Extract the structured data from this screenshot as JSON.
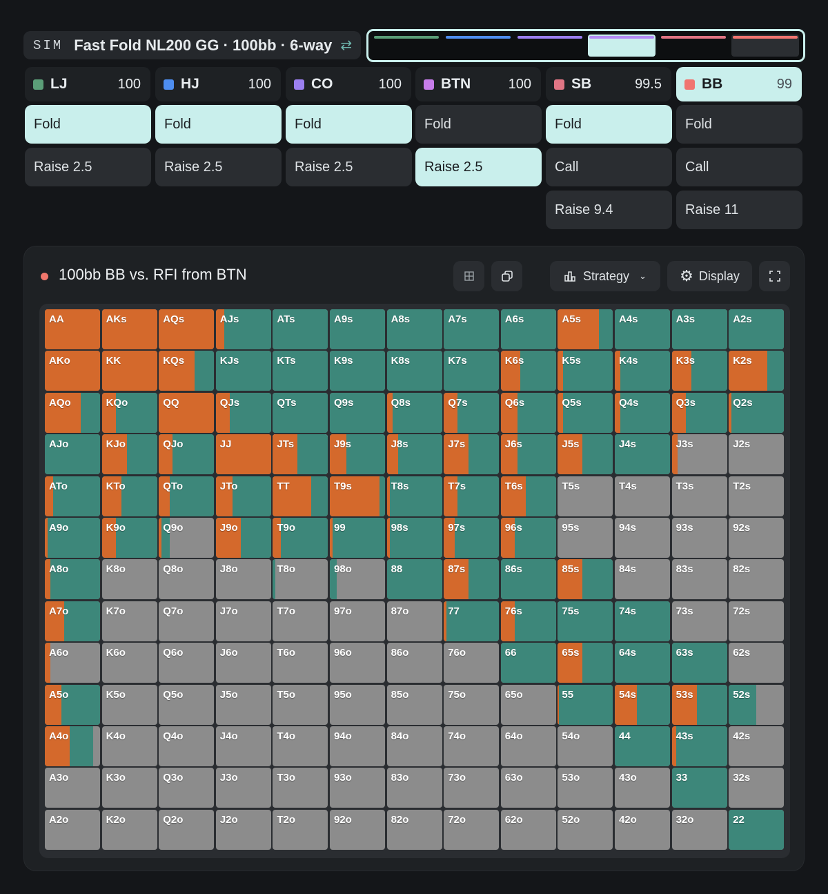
{
  "header": {
    "tag": "SIM",
    "title": "Fast Fold NL200 GG · 100bb · 6-way",
    "swap_icon": "swap-arrows-icon"
  },
  "timeline": [
    {
      "color": "#5b9e78",
      "state": "normal"
    },
    {
      "color": "#4e8ef0",
      "state": "normal"
    },
    {
      "color": "#9b7ff0",
      "state": "normal"
    },
    {
      "color": "#b58df5",
      "state": "active"
    },
    {
      "color": "#e07584",
      "state": "normal"
    },
    {
      "color": "#f07570",
      "state": "last"
    }
  ],
  "positions": [
    {
      "name": "LJ",
      "stack": "100",
      "color": "#5b9e78",
      "active": false,
      "actions": [
        "Fold",
        "Raise 2.5"
      ],
      "selected": 0
    },
    {
      "name": "HJ",
      "stack": "100",
      "color": "#4e8ef0",
      "active": false,
      "actions": [
        "Fold",
        "Raise 2.5"
      ],
      "selected": 0
    },
    {
      "name": "CO",
      "stack": "100",
      "color": "#9b7ff0",
      "active": false,
      "actions": [
        "Fold",
        "Raise 2.5"
      ],
      "selected": 0
    },
    {
      "name": "BTN",
      "stack": "100",
      "color": "#c77dea",
      "active": false,
      "actions": [
        "Fold",
        "Raise 2.5"
      ],
      "selected": 1
    },
    {
      "name": "SB",
      "stack": "99.5",
      "color": "#e07584",
      "active": false,
      "actions": [
        "Fold",
        "Call",
        "Raise 9.4"
      ],
      "selected": 0
    },
    {
      "name": "BB",
      "stack": "99",
      "color": "#f07570",
      "active": true,
      "actions": [
        "Fold",
        "Call",
        "Raise 11"
      ],
      "selected": -1
    }
  ],
  "panel": {
    "title": "100bb BB vs. RFI from BTN",
    "strategy_label": "Strategy",
    "display_label": "Display"
  },
  "colors": {
    "raise": "#d4692c",
    "call": "#3d877a",
    "fold": "#8c8c8c"
  },
  "grid": {
    "highlighted": "JTs",
    "cells": [
      [
        "AA",
        1,
        0
      ],
      [
        "AKs",
        1,
        0
      ],
      [
        "AQs",
        1,
        0
      ],
      [
        "AJs",
        0.15,
        0.85
      ],
      [
        "ATs",
        0,
        1
      ],
      [
        "A9s",
        0,
        1
      ],
      [
        "A8s",
        0,
        1
      ],
      [
        "A7s",
        0,
        1
      ],
      [
        "A6s",
        0,
        1
      ],
      [
        "A5s",
        0.75,
        0.25
      ],
      [
        "A4s",
        0,
        1
      ],
      [
        "A3s",
        0,
        1
      ],
      [
        "A2s",
        0,
        1
      ],
      [
        "AKo",
        1,
        0
      ],
      [
        "KK",
        1,
        0
      ],
      [
        "KQs",
        0.65,
        0.35
      ],
      [
        "KJs",
        0,
        1
      ],
      [
        "KTs",
        0,
        1
      ],
      [
        "K9s",
        0,
        1
      ],
      [
        "K8s",
        0,
        1
      ],
      [
        "K7s",
        0,
        1
      ],
      [
        "K6s",
        0.35,
        0.65
      ],
      [
        "K5s",
        0.1,
        0.9
      ],
      [
        "K4s",
        0.1,
        0.9
      ],
      [
        "K3s",
        0.35,
        0.65
      ],
      [
        "K2s",
        0.7,
        0.3
      ],
      [
        "AQo",
        0.65,
        0.35
      ],
      [
        "KQo",
        0.25,
        0.75
      ],
      [
        "QQ",
        1,
        0
      ],
      [
        "QJs",
        0.25,
        0.75
      ],
      [
        "QTs",
        0,
        1
      ],
      [
        "Q9s",
        0,
        1
      ],
      [
        "Q8s",
        0.1,
        0.9
      ],
      [
        "Q7s",
        0.25,
        0.75
      ],
      [
        "Q6s",
        0.3,
        0.7
      ],
      [
        "Q5s",
        0.1,
        0.9
      ],
      [
        "Q4s",
        0.1,
        0.9
      ],
      [
        "Q3s",
        0.25,
        0.75
      ],
      [
        "Q2s",
        0.05,
        0.95
      ],
      [
        "AJo",
        0,
        1
      ],
      [
        "KJo",
        0.45,
        0.55
      ],
      [
        "QJo",
        0.25,
        0.75
      ],
      [
        "JJ",
        1,
        0
      ],
      [
        "JTs",
        0.45,
        0.55
      ],
      [
        "J9s",
        0.3,
        0.7
      ],
      [
        "J8s",
        0.2,
        0.8
      ],
      [
        "J7s",
        0.45,
        0.55
      ],
      [
        "J6s",
        0.3,
        0.7
      ],
      [
        "J5s",
        0.45,
        0.55
      ],
      [
        "J4s",
        0,
        1
      ],
      [
        "J3s",
        0.1,
        0
      ],
      [
        "J2s",
        0,
        0
      ],
      [
        "ATo",
        0.15,
        0.85
      ],
      [
        "KTo",
        0.35,
        0.65
      ],
      [
        "QTo",
        0.2,
        0.8
      ],
      [
        "JTo",
        0.3,
        0.7
      ],
      [
        "TT",
        0.7,
        0.3
      ],
      [
        "T9s",
        0.9,
        0.1
      ],
      [
        "T8s",
        0.05,
        0.95
      ],
      [
        "T7s",
        0.25,
        0.75
      ],
      [
        "T6s",
        0.45,
        0.55
      ],
      [
        "T5s",
        0,
        0
      ],
      [
        "T4s",
        0,
        0
      ],
      [
        "T3s",
        0,
        0
      ],
      [
        "T2s",
        0,
        0
      ],
      [
        "A9o",
        0.05,
        0.95
      ],
      [
        "K9o",
        0.25,
        0.75
      ],
      [
        "Q9o",
        0.05,
        0.15
      ],
      [
        "J9o",
        0.45,
        0.55
      ],
      [
        "T9o",
        0.15,
        0.85
      ],
      [
        "99",
        0.05,
        0.95
      ],
      [
        "98s",
        0.05,
        0.95
      ],
      [
        "97s",
        0.2,
        0.8
      ],
      [
        "96s",
        0.25,
        0.75
      ],
      [
        "95s",
        0,
        0
      ],
      [
        "94s",
        0,
        0
      ],
      [
        "93s",
        0,
        0
      ],
      [
        "92s",
        0,
        0
      ],
      [
        "A8o",
        0.1,
        0.9
      ],
      [
        "K8o",
        0,
        0
      ],
      [
        "Q8o",
        0,
        0
      ],
      [
        "J8o",
        0,
        0
      ],
      [
        "T8o",
        0,
        0.05
      ],
      [
        "98o",
        0,
        0.12
      ],
      [
        "88",
        0,
        1
      ],
      [
        "87s",
        0.45,
        0.55
      ],
      [
        "86s",
        0,
        1
      ],
      [
        "85s",
        0.45,
        0.55
      ],
      [
        "84s",
        0,
        0
      ],
      [
        "83s",
        0,
        0
      ],
      [
        "82s",
        0,
        0
      ],
      [
        "A7o",
        0.35,
        0.65
      ],
      [
        "K7o",
        0,
        0
      ],
      [
        "Q7o",
        0,
        0
      ],
      [
        "J7o",
        0,
        0
      ],
      [
        "T7o",
        0,
        0
      ],
      [
        "97o",
        0,
        0
      ],
      [
        "87o",
        0,
        0
      ],
      [
        "77",
        0.05,
        0.95
      ],
      [
        "76s",
        0.25,
        0.75
      ],
      [
        "75s",
        0,
        1
      ],
      [
        "74s",
        0,
        1
      ],
      [
        "73s",
        0,
        0
      ],
      [
        "72s",
        0,
        0
      ],
      [
        "A6o",
        0.1,
        0
      ],
      [
        "K6o",
        0,
        0
      ],
      [
        "Q6o",
        0,
        0
      ],
      [
        "J6o",
        0,
        0
      ],
      [
        "T6o",
        0,
        0
      ],
      [
        "96o",
        0,
        0
      ],
      [
        "86o",
        0,
        0
      ],
      [
        "76o",
        0,
        0
      ],
      [
        "66",
        0,
        1
      ],
      [
        "65s",
        0.45,
        0.55
      ],
      [
        "64s",
        0,
        1
      ],
      [
        "63s",
        0,
        1
      ],
      [
        "62s",
        0,
        0
      ],
      [
        "A5o",
        0.3,
        0.7
      ],
      [
        "K5o",
        0,
        0
      ],
      [
        "Q5o",
        0,
        0
      ],
      [
        "J5o",
        0,
        0
      ],
      [
        "T5o",
        0,
        0
      ],
      [
        "95o",
        0,
        0
      ],
      [
        "85o",
        0,
        0
      ],
      [
        "75o",
        0,
        0
      ],
      [
        "65o",
        0,
        0
      ],
      [
        "55",
        0.02,
        0.98
      ],
      [
        "54s",
        0.4,
        0.6
      ],
      [
        "53s",
        0.45,
        0.55
      ],
      [
        "52s",
        0,
        0.5
      ],
      [
        "A4o",
        0.45,
        0.42
      ],
      [
        "K4o",
        0,
        0
      ],
      [
        "Q4o",
        0,
        0
      ],
      [
        "J4o",
        0,
        0
      ],
      [
        "T4o",
        0,
        0
      ],
      [
        "94o",
        0,
        0
      ],
      [
        "84o",
        0,
        0
      ],
      [
        "74o",
        0,
        0
      ],
      [
        "64o",
        0,
        0
      ],
      [
        "54o",
        0,
        0
      ],
      [
        "44",
        0,
        1
      ],
      [
        "43s",
        0.08,
        0.92
      ],
      [
        "42s",
        0,
        0
      ],
      [
        "A3o",
        0,
        0
      ],
      [
        "K3o",
        0,
        0
      ],
      [
        "Q3o",
        0,
        0
      ],
      [
        "J3o",
        0,
        0
      ],
      [
        "T3o",
        0,
        0
      ],
      [
        "93o",
        0,
        0
      ],
      [
        "83o",
        0,
        0
      ],
      [
        "73o",
        0,
        0
      ],
      [
        "63o",
        0,
        0
      ],
      [
        "53o",
        0,
        0
      ],
      [
        "43o",
        0,
        0
      ],
      [
        "33",
        0,
        1
      ],
      [
        "32s",
        0,
        0
      ],
      [
        "A2o",
        0,
        0
      ],
      [
        "K2o",
        0,
        0
      ],
      [
        "Q2o",
        0,
        0
      ],
      [
        "J2o",
        0,
        0
      ],
      [
        "T2o",
        0,
        0
      ],
      [
        "92o",
        0,
        0
      ],
      [
        "82o",
        0,
        0
      ],
      [
        "72o",
        0,
        0
      ],
      [
        "62o",
        0,
        0
      ],
      [
        "52o",
        0,
        0
      ],
      [
        "42o",
        0,
        0
      ],
      [
        "32o",
        0,
        0
      ],
      [
        "22",
        0,
        1
      ]
    ]
  }
}
